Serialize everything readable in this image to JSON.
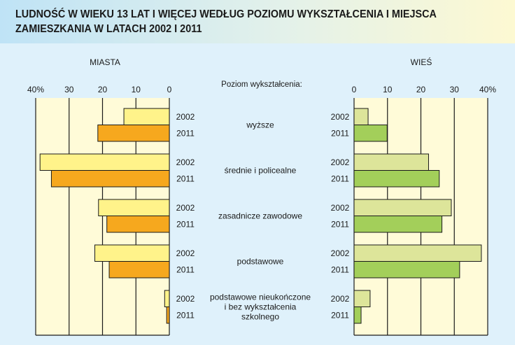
{
  "title": "LUDNOŚĆ W WIEKU 13 LAT I WIĘCEJ WEDŁUG POZIOMU WYKSZTAŁCENIA I MIEJSCA ZAMIESZKANIA W LATACH 2002 I 2011",
  "chart_data": [
    {
      "type": "bar",
      "orientation": "horizontal",
      "direction": "right-to-left",
      "title": "MIASTA",
      "categories": [
        "wyższe",
        "średnie i policealne",
        "zasadnicze zawodowe",
        "podstawowe",
        "podstawowe nieukończone i bez wykształcenia szkolnego"
      ],
      "xlim": [
        0,
        40
      ],
      "ticks": [
        "0",
        "10",
        "20",
        "30",
        "40%"
      ],
      "grid": true,
      "series": [
        {
          "name": "2002",
          "color": "#fff38a",
          "values": [
            13.6,
            38.7,
            21.2,
            22.3,
            1.4
          ]
        },
        {
          "name": "2011",
          "color": "#f6a81e",
          "values": [
            21.4,
            35.3,
            18.7,
            18.0,
            0.8
          ]
        }
      ]
    },
    {
      "type": "bar",
      "orientation": "horizontal",
      "direction": "left-to-right",
      "title": "WIEŚ",
      "categories": [
        "wyższe",
        "średnie i policealne",
        "zasadnicze zawodowe",
        "podstawowe",
        "podstawowe nieukończone i bez wykształcenia szkolnego"
      ],
      "xlim": [
        0,
        40
      ],
      "ticks": [
        "0",
        "10",
        "20",
        "30",
        "40%"
      ],
      "grid": true,
      "series": [
        {
          "name": "2002",
          "color": "#dde59a",
          "values": [
            4.2,
            22.3,
            29.1,
            38.1,
            4.8
          ]
        },
        {
          "name": "2011",
          "color": "#a3cf5a",
          "values": [
            9.9,
            25.5,
            26.3,
            31.6,
            2.1
          ]
        }
      ]
    }
  ],
  "center": {
    "heading": "Poziom wykształcenia:",
    "labels": [
      [
        "wyższe"
      ],
      [
        "średnie i policealne"
      ],
      [
        "zasadnicze zawodowe"
      ],
      [
        "podstawowe"
      ],
      [
        "podstawowe nieukończone",
        "i bez wykształcenia",
        "szkolnego"
      ]
    ]
  },
  "colors": {
    "background": "#dff1fb",
    "plot_background": "#fffbd8"
  }
}
